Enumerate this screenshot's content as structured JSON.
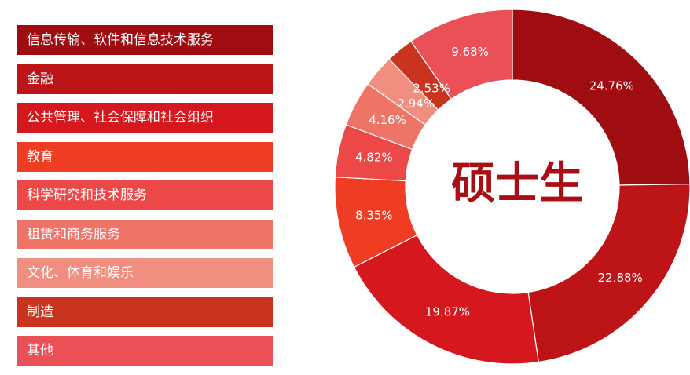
{
  "chart_data": {
    "type": "pie",
    "title": "硕士生",
    "categories": [
      "信息传输、软件和信息技术服务",
      "金融",
      "公共管理、社会保障和社会组织",
      "教育",
      "科学研究和技术服务",
      "租赁和商务服务",
      "文化、体育和娱乐",
      "制造",
      "其他"
    ],
    "values": [
      24.76,
      22.88,
      19.87,
      8.35,
      4.82,
      4.16,
      2.94,
      2.53,
      9.68
    ],
    "labels": [
      "24.76%",
      "22.88%",
      "19.87%",
      "8.35%",
      "4.82%",
      "4.16%",
      "2.94%",
      "2.53%",
      "9.68%"
    ],
    "colors": [
      "#9f0d10",
      "#bd1418",
      "#d5181d",
      "#ee3d22",
      "#ec4848",
      "#ef7468",
      "#f08e80",
      "#c9341e",
      "#ea5157"
    ],
    "legend_position": "left"
  }
}
